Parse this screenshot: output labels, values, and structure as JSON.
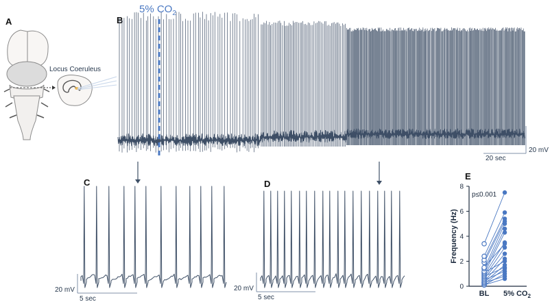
{
  "panels": {
    "a": "A",
    "b": "B",
    "c": "C",
    "d": "D",
    "e": "E"
  },
  "panel_a": {
    "region_label": "Locus Coeruleus"
  },
  "panel_b": {
    "stim_label": "5% CO",
    "stim_sub": "2",
    "scale_v": "20 mV",
    "scale_t": "20 sec"
  },
  "panel_c": {
    "scale_v": "20 mV",
    "scale_t": "5 sec"
  },
  "panel_d": {
    "scale_v": "20 mV",
    "scale_t": "5 sec"
  },
  "colors": {
    "trace": "#3e4f66",
    "accent": "#4a78c2"
  },
  "chart_data": {
    "type": "scatter",
    "title": "",
    "annotation": "p≤0.001",
    "xlabel": "",
    "ylabel": "Frequency (Hz)",
    "categories": [
      "BL",
      "5% CO2"
    ],
    "category_labels": {
      "bl": "BL",
      "co2": "5% CO",
      "co2_sub": "2"
    },
    "ylim": [
      0,
      8
    ],
    "yticks": [
      "0",
      "2",
      "4",
      "6",
      "8"
    ],
    "pairs": [
      [
        0.1,
        0.6
      ],
      [
        0.1,
        1.0
      ],
      [
        0.2,
        1.4
      ],
      [
        0.3,
        0.8
      ],
      [
        0.3,
        1.7
      ],
      [
        0.4,
        2.2
      ],
      [
        0.5,
        1.2
      ],
      [
        0.6,
        2.6
      ],
      [
        0.7,
        3.1
      ],
      [
        0.8,
        1.5
      ],
      [
        0.9,
        3.5
      ],
      [
        1.0,
        4.3
      ],
      [
        1.1,
        2.0
      ],
      [
        1.2,
        4.6
      ],
      [
        1.4,
        5.0
      ],
      [
        1.5,
        3.4
      ],
      [
        1.9,
        5.2
      ],
      [
        2.1,
        5.4
      ],
      [
        2.4,
        5.9
      ],
      [
        3.4,
        7.5
      ]
    ]
  }
}
